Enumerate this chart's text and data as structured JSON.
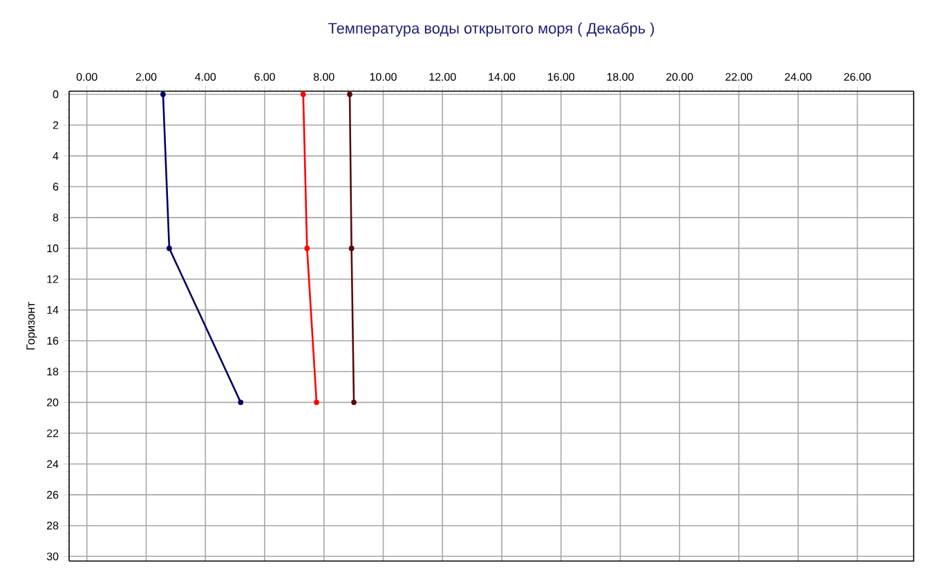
{
  "chart_data": {
    "type": "line",
    "title": "Температура воды открытого моря     ( Декабрь )",
    "ylabel": "Горизонт",
    "series": [
      {
        "color": "#000060",
        "x": [
          2.57,
          2.78,
          5.19
        ],
        "values": [
          0,
          10,
          20
        ]
      },
      {
        "color": "#ff0000",
        "x": [
          7.3,
          7.43,
          7.75
        ],
        "values": [
          0,
          10,
          20
        ]
      },
      {
        "color": "#5a0a0a",
        "x": [
          8.87,
          8.93,
          9.01
        ],
        "values": [
          0,
          10,
          20
        ]
      }
    ],
    "xlim": [
      -0.6,
      27.9
    ],
    "ylim": [
      30.3,
      -0.2
    ],
    "xticks": [
      {
        "value": 0,
        "label": "0.00"
      },
      {
        "value": 2,
        "label": "2.00"
      },
      {
        "value": 4,
        "label": "4.00"
      },
      {
        "value": 6,
        "label": "6.00"
      },
      {
        "value": 8,
        "label": "8.00"
      },
      {
        "value": 10,
        "label": "10.00"
      },
      {
        "value": 12,
        "label": "12.00"
      },
      {
        "value": 14,
        "label": "14.00"
      },
      {
        "value": 16,
        "label": "16.00"
      },
      {
        "value": 18,
        "label": "18.00"
      },
      {
        "value": 20,
        "label": "20.00"
      },
      {
        "value": 22,
        "label": "22.00"
      },
      {
        "value": 24,
        "label": "24.00"
      },
      {
        "value": 26,
        "label": "26.00"
      }
    ],
    "yticks": [
      0,
      2,
      4,
      6,
      8,
      10,
      12,
      14,
      16,
      18,
      20,
      22,
      24,
      26,
      28,
      30
    ],
    "grid": true,
    "marker": "circle",
    "line_style": "solid"
  }
}
